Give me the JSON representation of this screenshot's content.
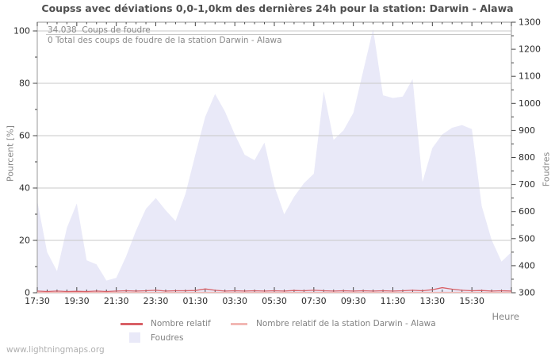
{
  "page": {
    "title": "Coupss avec déviations 0,0-1,0km des dernières 24h pour la station: Darwin - Alawa",
    "watermark": "www.lightningmaps.org"
  },
  "annotation": {
    "line1": "34.038  Coups de foudre",
    "line2": "0 Total des coups de foudre de la station Darwin - Alawa"
  },
  "legend": {
    "series_relative": "Nombre relatif",
    "series_station": "Nombre relatif de la station Darwin - Alawa",
    "series_strikes": "Foudres"
  },
  "axes": {
    "left_label": "Pourcent  [%]",
    "right_label": "Foudres",
    "x_label": "Heure"
  },
  "chart_data": {
    "type": "area",
    "title": "Coupss avec déviations 0,0-1,0km des dernières 24h pour la station: Darwin - Alawa",
    "grid": true,
    "legend_position": "bottom",
    "y_left": {
      "label": "Pourcent  [%]",
      "min": 0,
      "max": 100,
      "major_step": 20,
      "minor_step": 10,
      "tick_labels": [
        "0",
        "20",
        "40",
        "60",
        "80",
        "100"
      ]
    },
    "y_right": {
      "label": "Foudres",
      "min": 300,
      "max": 1300,
      "major_step": 100,
      "minor_step": 50,
      "tick_labels": [
        "300",
        "400",
        "500",
        "600",
        "700",
        "800",
        "900",
        "1000",
        "1100",
        "1200",
        "1300"
      ]
    },
    "x": {
      "label": "Heure",
      "tick_labels": [
        "17:30",
        "19:30",
        "21:30",
        "23:30",
        "01:30",
        "03:30",
        "05:30",
        "07:30",
        "09:30",
        "11:30",
        "13:30",
        "15:30"
      ],
      "points_per_major_tick": 4,
      "times": [
        "17:30",
        "18:00",
        "18:30",
        "19:00",
        "19:30",
        "20:00",
        "20:30",
        "21:00",
        "21:30",
        "22:00",
        "22:30",
        "23:00",
        "23:30",
        "00:00",
        "00:30",
        "01:00",
        "01:30",
        "02:00",
        "02:30",
        "03:00",
        "03:30",
        "04:00",
        "04:30",
        "05:00",
        "05:30",
        "06:00",
        "06:30",
        "07:00",
        "07:30",
        "08:00",
        "08:30",
        "09:00",
        "09:30",
        "10:00",
        "10:30",
        "11:00",
        "11:30",
        "12:00",
        "12:30",
        "13:00",
        "13:30",
        "14:00",
        "14:30",
        "15:00",
        "15:30",
        "16:00",
        "16:30",
        "17:00",
        "17:25"
      ]
    },
    "series": [
      {
        "name": "Foudres",
        "type": "area",
        "axis": "right",
        "color": "#e9e9f8",
        "values": [
          640,
          450,
          380,
          540,
          630,
          420,
          405,
          345,
          355,
          435,
          530,
          610,
          650,
          605,
          565,
          665,
          810,
          950,
          1035,
          970,
          885,
          810,
          790,
          855,
          695,
          590,
          655,
          705,
          740,
          1045,
          865,
          900,
          965,
          1120,
          1275,
          1030,
          1020,
          1025,
          1090,
          710,
          835,
          885,
          910,
          920,
          905,
          620,
          495,
          415,
          450
        ]
      },
      {
        "name": "Nombre relatif",
        "type": "line",
        "axis": "left",
        "color": "#d96066",
        "values": [
          0.5,
          0.3,
          0.5,
          0.3,
          0.4,
          0.3,
          0.5,
          0.3,
          0.5,
          0.6,
          0.5,
          0.6,
          0.8,
          0.5,
          0.6,
          0.6,
          0.7,
          1.3,
          0.8,
          0.5,
          0.6,
          0.5,
          0.6,
          0.5,
          0.6,
          0.5,
          0.7,
          0.6,
          0.8,
          0.6,
          0.5,
          0.6,
          0.5,
          0.6,
          0.5,
          0.6,
          0.5,
          0.6,
          0.8,
          0.6,
          1.0,
          1.8,
          1.2,
          0.8,
          0.6,
          0.7,
          0.5,
          0.6,
          0.5
        ]
      },
      {
        "name": "Nombre relatif de la station Darwin - Alawa",
        "type": "line",
        "axis": "left",
        "color": "#f2b8b4",
        "values": [
          0,
          0,
          0,
          0,
          0,
          0,
          0,
          0,
          0,
          0,
          0,
          0,
          0,
          0,
          0,
          0,
          0,
          0,
          0,
          0,
          0,
          0,
          0,
          0,
          0,
          0,
          0,
          0,
          0,
          0,
          0,
          0,
          0,
          0,
          0,
          0,
          0,
          0,
          0,
          0,
          0,
          0,
          0,
          0,
          0,
          0,
          0,
          0,
          0
        ]
      }
    ],
    "colors": {
      "grid": "#c9c9c9",
      "plot_border": "#9a9a9a",
      "tick_text": "#2b2b2b",
      "muted_text": "#878787",
      "title_text": "#4f4f4f",
      "annotation_text": "#8a8a8a",
      "annotation_underline": "#c6c6c6",
      "watermark": "#b0b0b0",
      "background": "#ffffff"
    }
  }
}
